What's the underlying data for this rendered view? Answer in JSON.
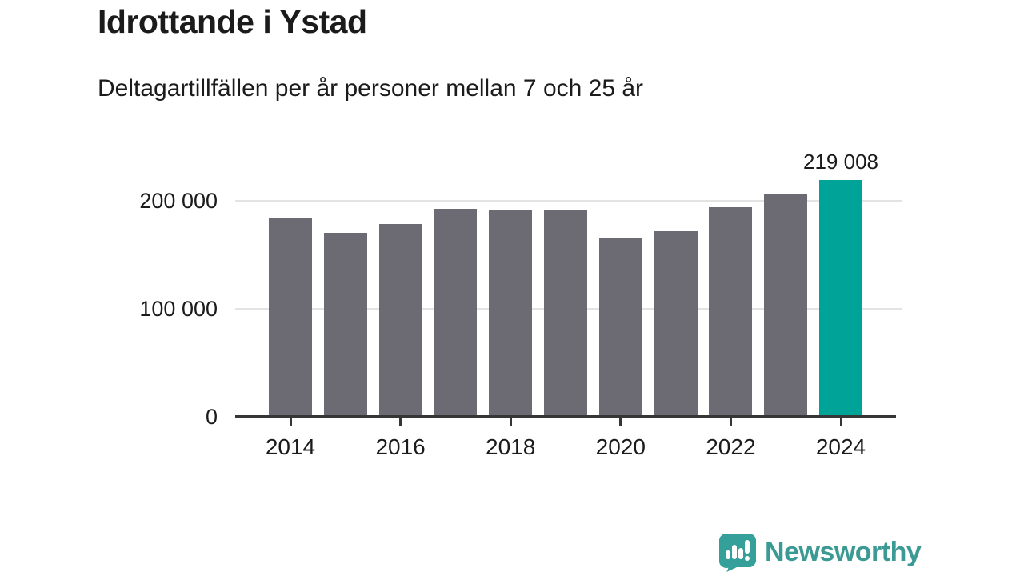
{
  "header": {
    "title": "Idrottande i Ystad",
    "subtitle": "Deltagartillfällen per år personer mellan 7 och 25 år"
  },
  "chart_data": {
    "type": "bar",
    "title": "Idrottande i Ystad",
    "subtitle": "Deltagartillfällen per år personer mellan 7 och 25 år",
    "categories": [
      2014,
      2015,
      2016,
      2017,
      2018,
      2019,
      2020,
      2021,
      2022,
      2023,
      2024
    ],
    "values": [
      184500,
      170500,
      178400,
      192700,
      191200,
      191800,
      165000,
      172000,
      194500,
      206400,
      219008
    ],
    "highlight": {
      "index": 10,
      "label": "219 008"
    },
    "yticks": [
      {
        "value": 0,
        "label": "0"
      },
      {
        "value": 100000,
        "label": "100 000"
      },
      {
        "value": 200000,
        "label": "200 000"
      }
    ],
    "gridline_values": [
      100000,
      200000
    ],
    "xticks": [
      {
        "year": 2014,
        "label": "2014"
      },
      {
        "year": 2016,
        "label": "2016"
      },
      {
        "year": 2018,
        "label": "2018"
      },
      {
        "year": 2020,
        "label": "2020"
      },
      {
        "year": 2022,
        "label": "2022"
      },
      {
        "year": 2024,
        "label": "2024"
      }
    ],
    "ylim": [
      0,
      225000
    ],
    "grid": true,
    "legend": "none",
    "colors": {
      "bar": "#6c6a72",
      "highlight": "#00a398",
      "gridline": "#e3e3e3",
      "axis": "#363636",
      "text": "#1b1b1b"
    }
  },
  "branding": {
    "logo_text": "Newsworthy",
    "logo_color": "#3b9a94",
    "logo_icon": "newsworthy-speech-bubble-chart-icon",
    "logo_icon_color": "#319c96"
  }
}
